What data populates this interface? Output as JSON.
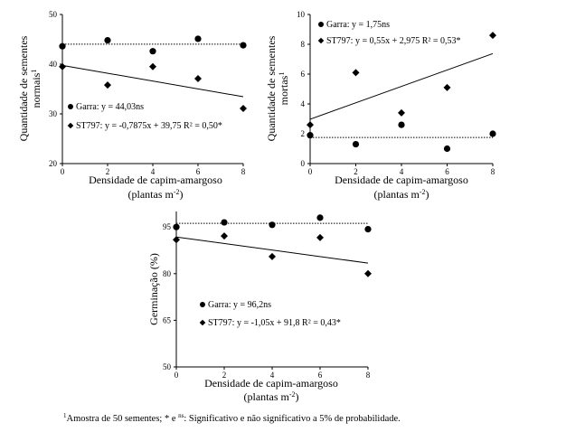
{
  "chart_data": [
    {
      "type": "scatter",
      "xlabel": "Densidade de capim-amargoso",
      "xlabel_line2": "(plantas m",
      "xlabel_sup": "-2",
      "xlabel_end": ")",
      "ylabel_line1": "Quantidade de sementes",
      "ylabel_line2": "normais",
      "ylabel_sup": "1",
      "xlim": [
        0,
        8
      ],
      "ylim": [
        20,
        50
      ],
      "xticks": [
        0,
        2,
        4,
        6,
        8
      ],
      "yticks": [
        20,
        30,
        40,
        50
      ],
      "series": [
        {
          "name": "Garra: y = 44,03ns",
          "marker": "circle",
          "x": [
            0,
            2,
            4,
            6,
            8
          ],
          "y": [
            43.6,
            44.8,
            42.6,
            45.1,
            43.8
          ],
          "fit": {
            "type": "constant",
            "value": 44.03,
            "style": "dotted"
          }
        },
        {
          "name": "ST797: y = -0,7875x + 39,75 R² = 0,50*",
          "marker": "diamond",
          "x": [
            0,
            2,
            4,
            6,
            8
          ],
          "y": [
            39.5,
            35.8,
            39.5,
            37.1,
            31.1
          ],
          "fit": {
            "type": "linear",
            "slope": -0.7875,
            "intercept": 39.75,
            "style": "solid"
          }
        }
      ]
    },
    {
      "type": "scatter",
      "xlabel": "Densidade de capim-amargoso",
      "xlabel_line2": "(plantas m",
      "xlabel_sup": "-2",
      "xlabel_end": ")",
      "ylabel_line1": "Quantidade de sementes",
      "ylabel_line2": "mortas",
      "ylabel_sup": "1",
      "xlim": [
        0,
        8
      ],
      "ylim": [
        0,
        10
      ],
      "xticks": [
        0,
        2,
        4,
        6,
        8
      ],
      "yticks": [
        0,
        2,
        4,
        6,
        8,
        10
      ],
      "series": [
        {
          "name": "Garra: y = 1,75ns",
          "marker": "circle",
          "x": [
            0,
            2,
            4,
            6,
            8
          ],
          "y": [
            1.9,
            1.3,
            2.6,
            1.0,
            2.0
          ],
          "fit": {
            "type": "constant",
            "value": 1.75,
            "style": "dotted"
          }
        },
        {
          "name": "ST797: y = 0,55x + 2,975 R² = 0,53*",
          "marker": "diamond",
          "x": [
            0,
            2,
            4,
            6,
            8
          ],
          "y": [
            2.6,
            6.1,
            3.4,
            5.1,
            8.6
          ],
          "fit": {
            "type": "linear",
            "slope": 0.55,
            "intercept": 2.975,
            "style": "solid"
          }
        }
      ]
    },
    {
      "type": "scatter",
      "xlabel": "Densidade de capim-amargoso",
      "xlabel_line2": "(plantas m",
      "xlabel_sup": "-2",
      "xlabel_end": ")",
      "ylabel_line1": "Germinação (%)",
      "xlim": [
        0,
        8
      ],
      "ylim": [
        50,
        100
      ],
      "xticks": [
        0,
        2,
        4,
        6,
        8
      ],
      "yticks": [
        50,
        65,
        80,
        95
      ],
      "series": [
        {
          "name": "Garra: y = 96,2ns",
          "marker": "circle",
          "x": [
            0,
            2,
            4,
            6,
            8
          ],
          "y": [
            95.0,
            96.5,
            95.7,
            98.0,
            94.3
          ],
          "fit": {
            "type": "constant",
            "value": 96.2,
            "style": "dotted"
          }
        },
        {
          "name": "ST797: y = -1,05x + 91,8 R² = 0,43*",
          "marker": "diamond",
          "x": [
            0,
            2,
            4,
            6,
            8
          ],
          "y": [
            90.9,
            92.1,
            85.5,
            91.6,
            80.0
          ],
          "fit": {
            "type": "linear",
            "slope": -1.05,
            "intercept": 91.8,
            "style": "solid"
          }
        }
      ]
    }
  ],
  "footnote": {
    "sup1": "1",
    "part1": "Amostra de 50 sementes; * e ",
    "sup2": "ns",
    "part2": ": Significativo e não significativo a 5% de probabilidade."
  }
}
